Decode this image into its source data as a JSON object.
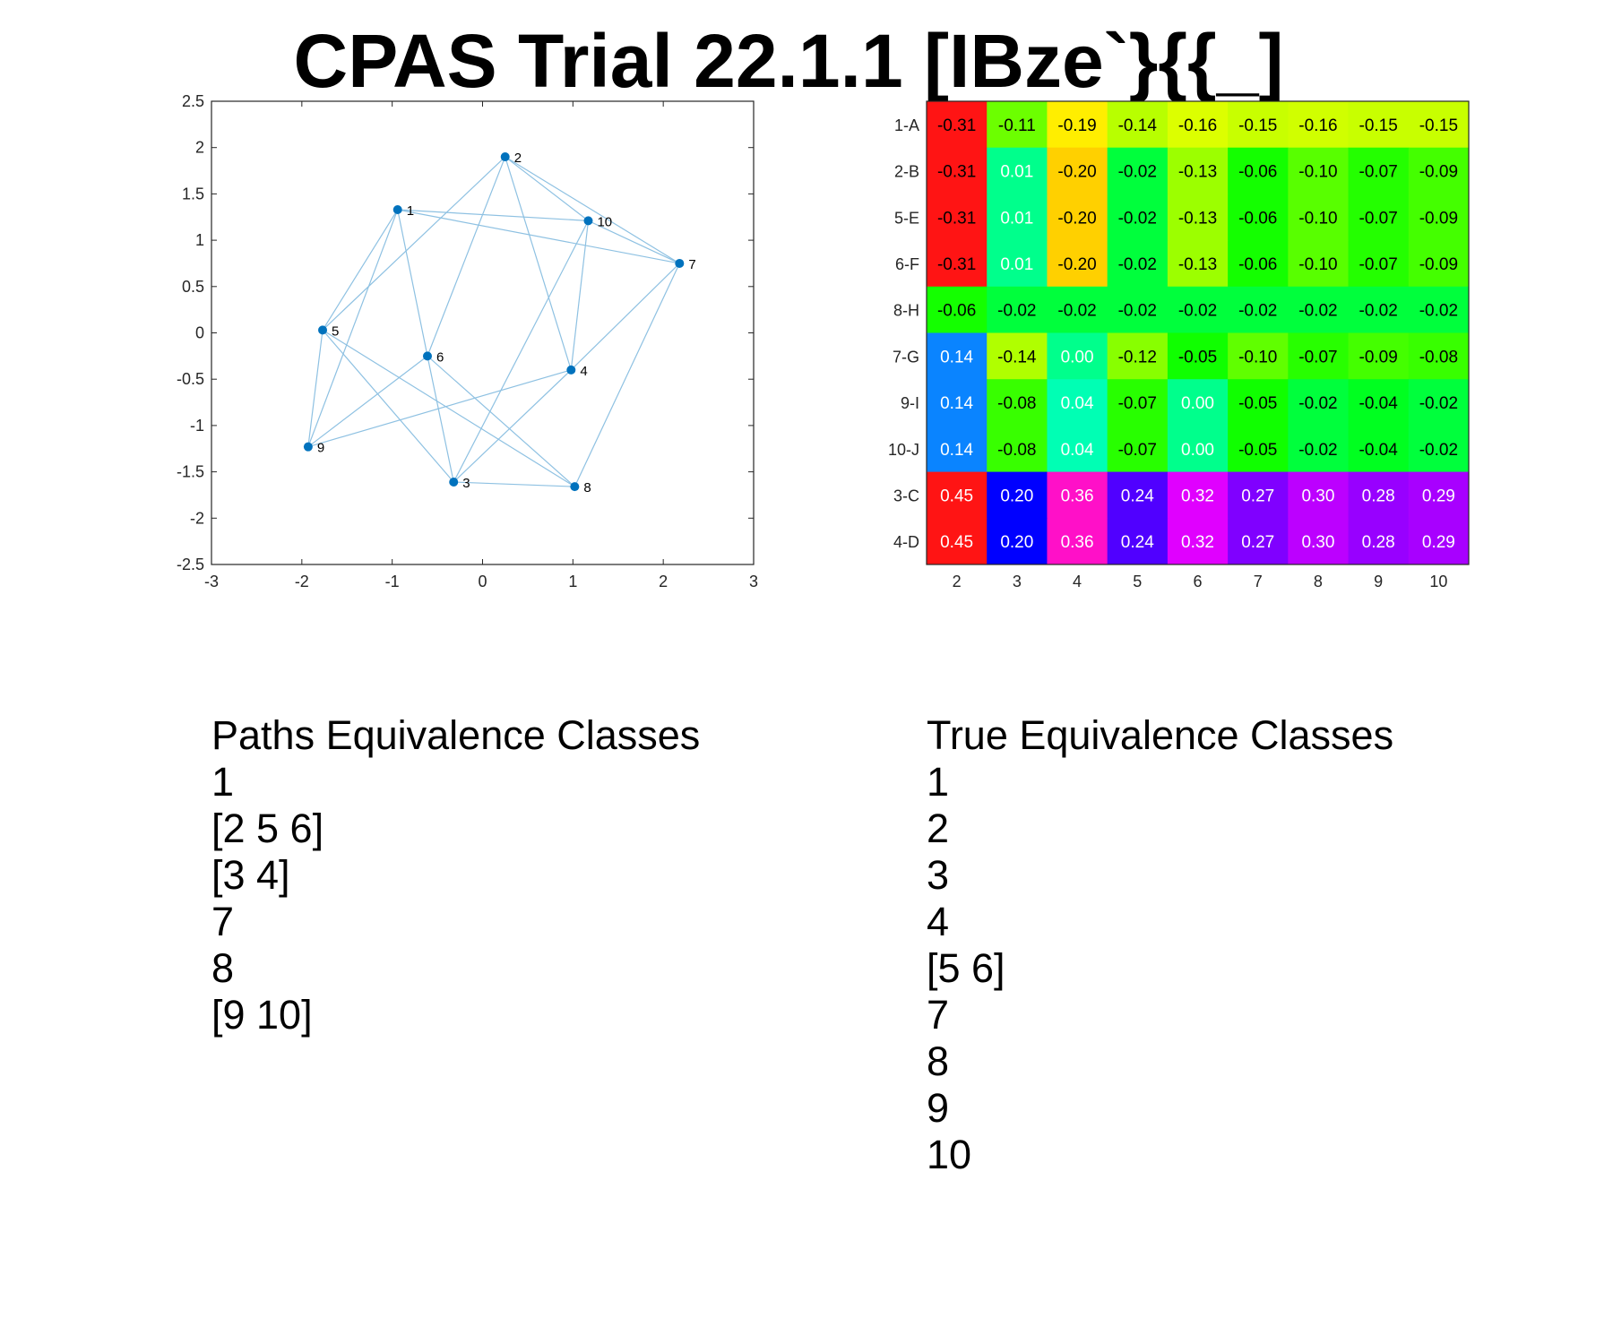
{
  "title": "CPAS Trial 22.1.1 [IBze`}{{_]",
  "chart_data": [
    {
      "type": "scatter",
      "subtype": "network-graph",
      "xlim": [
        -3,
        3
      ],
      "ylim": [
        -2.5,
        2.5
      ],
      "x_ticks": [
        -3,
        -2,
        -1,
        0,
        1,
        2,
        3
      ],
      "y_ticks": [
        2.5,
        2,
        1.5,
        1,
        0.5,
        0,
        -0.5,
        -1,
        -1.5,
        -2,
        -2.5
      ],
      "grid": false,
      "node_color": "#0072BD",
      "edge_color": "#8EC1E2",
      "nodes": [
        {
          "label": "1",
          "x": -0.94,
          "y": 1.33
        },
        {
          "label": "2",
          "x": 0.25,
          "y": 1.9
        },
        {
          "label": "3",
          "x": -0.32,
          "y": -1.61
        },
        {
          "label": "4",
          "x": 0.98,
          "y": -0.4
        },
        {
          "label": "5",
          "x": -1.77,
          "y": 0.03
        },
        {
          "label": "6",
          "x": -0.61,
          "y": -0.25
        },
        {
          "label": "7",
          "x": 2.18,
          "y": 0.75
        },
        {
          "label": "8",
          "x": 1.02,
          "y": -1.66
        },
        {
          "label": "9",
          "x": -1.93,
          "y": -1.23
        },
        {
          "label": "10",
          "x": 1.17,
          "y": 1.21
        }
      ],
      "edges": [
        [
          "1",
          "5"
        ],
        [
          "1",
          "6"
        ],
        [
          "1",
          "9"
        ],
        [
          "1",
          "10"
        ],
        [
          "1",
          "7"
        ],
        [
          "2",
          "5"
        ],
        [
          "2",
          "6"
        ],
        [
          "2",
          "4"
        ],
        [
          "2",
          "10"
        ],
        [
          "2",
          "7"
        ],
        [
          "3",
          "5"
        ],
        [
          "3",
          "6"
        ],
        [
          "3",
          "4"
        ],
        [
          "3",
          "10"
        ],
        [
          "3",
          "8"
        ],
        [
          "4",
          "9"
        ],
        [
          "4",
          "7"
        ],
        [
          "4",
          "10"
        ],
        [
          "5",
          "9"
        ],
        [
          "5",
          "8"
        ],
        [
          "6",
          "9"
        ],
        [
          "6",
          "8"
        ],
        [
          "7",
          "8"
        ],
        [
          "10",
          "7"
        ]
      ]
    },
    {
      "type": "heatmap",
      "columns": [
        "2",
        "3",
        "4",
        "5",
        "6",
        "7",
        "8",
        "9",
        "10"
      ],
      "rows": [
        "1-A",
        "2-B",
        "5-E",
        "6-F",
        "8-H",
        "7-G",
        "9-I",
        "10-J",
        "3-C",
        "4-D"
      ],
      "cells": [
        [
          {
            "v": "-0.31",
            "bg": "#FF1414",
            "fg": "#000000"
          },
          {
            "v": "-0.11",
            "bg": "#6CFF00",
            "fg": "#000000"
          },
          {
            "v": "-0.19",
            "bg": "#FFEE00",
            "fg": "#000000"
          },
          {
            "v": "-0.14",
            "bg": "#B8FF00",
            "fg": "#000000"
          },
          {
            "v": "-0.16",
            "bg": "#DCFF00",
            "fg": "#000000"
          },
          {
            "v": "-0.15",
            "bg": "#C8FF00",
            "fg": "#000000"
          },
          {
            "v": "-0.16",
            "bg": "#D0FF00",
            "fg": "#000000"
          },
          {
            "v": "-0.15",
            "bg": "#C8FF00",
            "fg": "#000000"
          },
          {
            "v": "-0.15",
            "bg": "#C8FF00",
            "fg": "#000000"
          }
        ],
        [
          {
            "v": "-0.31",
            "bg": "#FF1414",
            "fg": "#000000"
          },
          {
            "v": "0.01",
            "bg": "#00FF8C",
            "fg": "#FFFFFF"
          },
          {
            "v": "-0.20",
            "bg": "#FFD000",
            "fg": "#000000"
          },
          {
            "v": "-0.02",
            "bg": "#00FF3C",
            "fg": "#000000"
          },
          {
            "v": "-0.13",
            "bg": "#9CFF00",
            "fg": "#000000"
          },
          {
            "v": "-0.06",
            "bg": "#14FF00",
            "fg": "#000000"
          },
          {
            "v": "-0.10",
            "bg": "#58FF00",
            "fg": "#000000"
          },
          {
            "v": "-0.07",
            "bg": "#24FF00",
            "fg": "#000000"
          },
          {
            "v": "-0.09",
            "bg": "#44FF00",
            "fg": "#000000"
          }
        ],
        [
          {
            "v": "-0.31",
            "bg": "#FF1414",
            "fg": "#000000"
          },
          {
            "v": "0.01",
            "bg": "#00FF8C",
            "fg": "#FFFFFF"
          },
          {
            "v": "-0.20",
            "bg": "#FFD000",
            "fg": "#000000"
          },
          {
            "v": "-0.02",
            "bg": "#00FF3C",
            "fg": "#000000"
          },
          {
            "v": "-0.13",
            "bg": "#9CFF00",
            "fg": "#000000"
          },
          {
            "v": "-0.06",
            "bg": "#14FF00",
            "fg": "#000000"
          },
          {
            "v": "-0.10",
            "bg": "#58FF00",
            "fg": "#000000"
          },
          {
            "v": "-0.07",
            "bg": "#24FF00",
            "fg": "#000000"
          },
          {
            "v": "-0.09",
            "bg": "#44FF00",
            "fg": "#000000"
          }
        ],
        [
          {
            "v": "-0.31",
            "bg": "#FF1414",
            "fg": "#000000"
          },
          {
            "v": "0.01",
            "bg": "#00FF8C",
            "fg": "#FFFFFF"
          },
          {
            "v": "-0.20",
            "bg": "#FFD000",
            "fg": "#000000"
          },
          {
            "v": "-0.02",
            "bg": "#00FF3C",
            "fg": "#000000"
          },
          {
            "v": "-0.13",
            "bg": "#9CFF00",
            "fg": "#000000"
          },
          {
            "v": "-0.06",
            "bg": "#14FF00",
            "fg": "#000000"
          },
          {
            "v": "-0.10",
            "bg": "#58FF00",
            "fg": "#000000"
          },
          {
            "v": "-0.07",
            "bg": "#24FF00",
            "fg": "#000000"
          },
          {
            "v": "-0.09",
            "bg": "#44FF00",
            "fg": "#000000"
          }
        ],
        [
          {
            "v": "-0.06",
            "bg": "#14FF00",
            "fg": "#000000"
          },
          {
            "v": "-0.02",
            "bg": "#00FF3C",
            "fg": "#000000"
          },
          {
            "v": "-0.02",
            "bg": "#00FF3C",
            "fg": "#000000"
          },
          {
            "v": "-0.02",
            "bg": "#00FF3C",
            "fg": "#000000"
          },
          {
            "v": "-0.02",
            "bg": "#00FF3C",
            "fg": "#000000"
          },
          {
            "v": "-0.02",
            "bg": "#00FF3C",
            "fg": "#000000"
          },
          {
            "v": "-0.02",
            "bg": "#00FF3C",
            "fg": "#000000"
          },
          {
            "v": "-0.02",
            "bg": "#00FF3C",
            "fg": "#000000"
          },
          {
            "v": "-0.02",
            "bg": "#00FF3C",
            "fg": "#000000"
          }
        ],
        [
          {
            "v": "0.14",
            "bg": "#0A84FF",
            "fg": "#FFFFFF"
          },
          {
            "v": "-0.14",
            "bg": "#B0FF00",
            "fg": "#000000"
          },
          {
            "v": "0.00",
            "bg": "#00FF8C",
            "fg": "#FFFFFF"
          },
          {
            "v": "-0.12",
            "bg": "#88FF00",
            "fg": "#000000"
          },
          {
            "v": "-0.05",
            "bg": "#10FF00",
            "fg": "#000000"
          },
          {
            "v": "-0.10",
            "bg": "#60FF00",
            "fg": "#000000"
          },
          {
            "v": "-0.07",
            "bg": "#28FF00",
            "fg": "#000000"
          },
          {
            "v": "-0.09",
            "bg": "#44FF00",
            "fg": "#000000"
          },
          {
            "v": "-0.08",
            "bg": "#38FF00",
            "fg": "#000000"
          }
        ],
        [
          {
            "v": "0.14",
            "bg": "#0A84FF",
            "fg": "#FFFFFF"
          },
          {
            "v": "-0.08",
            "bg": "#38FF00",
            "fg": "#000000"
          },
          {
            "v": "0.04",
            "bg": "#00FFB4",
            "fg": "#FFFFFF"
          },
          {
            "v": "-0.07",
            "bg": "#28FF00",
            "fg": "#000000"
          },
          {
            "v": "0.00",
            "bg": "#00FF8C",
            "fg": "#FFFFFF"
          },
          {
            "v": "-0.05",
            "bg": "#10FF00",
            "fg": "#000000"
          },
          {
            "v": "-0.02",
            "bg": "#00FF3C",
            "fg": "#000000"
          },
          {
            "v": "-0.04",
            "bg": "#00FF20",
            "fg": "#000000"
          },
          {
            "v": "-0.02",
            "bg": "#00FF3C",
            "fg": "#000000"
          }
        ],
        [
          {
            "v": "0.14",
            "bg": "#0A84FF",
            "fg": "#FFFFFF"
          },
          {
            "v": "-0.08",
            "bg": "#38FF00",
            "fg": "#000000"
          },
          {
            "v": "0.04",
            "bg": "#00FFB4",
            "fg": "#FFFFFF"
          },
          {
            "v": "-0.07",
            "bg": "#28FF00",
            "fg": "#000000"
          },
          {
            "v": "0.00",
            "bg": "#00FF8C",
            "fg": "#FFFFFF"
          },
          {
            "v": "-0.05",
            "bg": "#10FF00",
            "fg": "#000000"
          },
          {
            "v": "-0.02",
            "bg": "#00FF3C",
            "fg": "#000000"
          },
          {
            "v": "-0.04",
            "bg": "#00FF20",
            "fg": "#000000"
          },
          {
            "v": "-0.02",
            "bg": "#00FF3C",
            "fg": "#000000"
          }
        ],
        [
          {
            "v": "0.45",
            "bg": "#FF1414",
            "fg": "#FFFFFF"
          },
          {
            "v": "0.20",
            "bg": "#0000FF",
            "fg": "#FFFFFF"
          },
          {
            "v": "0.36",
            "bg": "#FF10C8",
            "fg": "#FFFFFF"
          },
          {
            "v": "0.24",
            "bg": "#5000FF",
            "fg": "#FFFFFF"
          },
          {
            "v": "0.32",
            "bg": "#E000FF",
            "fg": "#FFFFFF"
          },
          {
            "v": "0.27",
            "bg": "#8000FF",
            "fg": "#FFFFFF"
          },
          {
            "v": "0.30",
            "bg": "#BC00FF",
            "fg": "#FFFFFF"
          },
          {
            "v": "0.28",
            "bg": "#9800FF",
            "fg": "#FFFFFF"
          },
          {
            "v": "0.29",
            "bg": "#A800FF",
            "fg": "#FFFFFF"
          }
        ],
        [
          {
            "v": "0.45",
            "bg": "#FF1414",
            "fg": "#FFFFFF"
          },
          {
            "v": "0.20",
            "bg": "#0000FF",
            "fg": "#FFFFFF"
          },
          {
            "v": "0.36",
            "bg": "#FF10C8",
            "fg": "#FFFFFF"
          },
          {
            "v": "0.24",
            "bg": "#5000FF",
            "fg": "#FFFFFF"
          },
          {
            "v": "0.32",
            "bg": "#E000FF",
            "fg": "#FFFFFF"
          },
          {
            "v": "0.27",
            "bg": "#8000FF",
            "fg": "#FFFFFF"
          },
          {
            "v": "0.30",
            "bg": "#BC00FF",
            "fg": "#FFFFFF"
          },
          {
            "v": "0.28",
            "bg": "#9800FF",
            "fg": "#FFFFFF"
          },
          {
            "v": "0.29",
            "bg": "#A800FF",
            "fg": "#FFFFFF"
          }
        ]
      ]
    }
  ],
  "paths_classes": {
    "title": "Paths Equivalence Classes",
    "items": [
      "1",
      "[2 5 6]",
      "[3 4]",
      "7",
      "8",
      "[9 10]"
    ]
  },
  "true_classes": {
    "title": "True Equivalence Classes",
    "items": [
      "1",
      "2",
      "3",
      "4",
      "[5 6]",
      "7",
      "8",
      "9",
      "10"
    ]
  }
}
